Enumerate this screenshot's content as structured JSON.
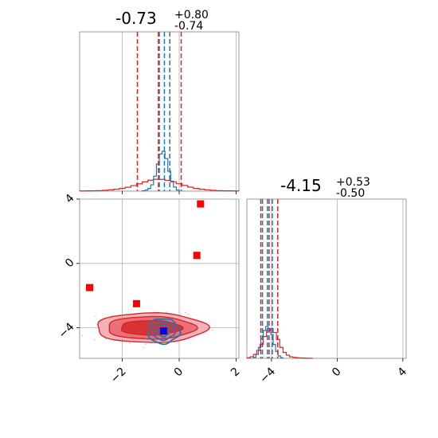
{
  "chart_data": [
    {
      "type": "histogram",
      "panel": "top-left marginal",
      "parameter_index": 0,
      "title": {
        "median": "-0.73",
        "upper": "+0.80",
        "lower": "-0.74"
      },
      "xlim": [
        -3.5,
        2.1
      ],
      "xticks": [
        -2,
        0,
        2
      ],
      "grid": true,
      "series": [
        {
          "color": "#d62728",
          "style": "step",
          "bins": [
            -3.5,
            -3.3,
            -3.1,
            -2.9,
            -2.7,
            -2.5,
            -2.3,
            -2.1,
            -1.9,
            -1.7,
            -1.5,
            -1.3,
            -1.1,
            -0.9,
            -0.7,
            -0.5,
            -0.3,
            -0.1,
            0.1,
            0.3,
            0.5,
            0.7,
            0.9,
            1.1,
            1.3,
            1.5,
            1.7,
            1.9,
            2.1
          ],
          "counts": [
            0.2,
            0.3,
            0.4,
            0.6,
            0.9,
            1.4,
            2.1,
            3.1,
            4.3,
            6.1,
            8.0,
            10.2,
            12.1,
            13.1,
            13.0,
            11.9,
            10.3,
            8.2,
            6.3,
            4.4,
            3.0,
            2.1,
            1.4,
            0.9,
            0.6,
            0.4,
            0.3,
            0.2
          ],
          "quantiles": [
            -1.47,
            -0.73,
            0.07
          ]
        },
        {
          "color": "#1f77b4",
          "style": "step",
          "bins": [
            -1.3,
            -1.2,
            -1.1,
            -1.0,
            -0.9,
            -0.8,
            -0.7,
            -0.6,
            -0.5,
            -0.4,
            -0.3,
            -0.2,
            -0.1,
            0.0
          ],
          "counts": [
            0.3,
            1.2,
            3.0,
            7.0,
            16.5,
            30.0,
            41.0,
            44.0,
            36.0,
            22.0,
            11.0,
            4.5,
            1.2
          ],
          "quantiles": [
            -0.7,
            -0.52,
            -0.33
          ]
        }
      ]
    },
    {
      "type": "histogram",
      "panel": "bottom-right marginal",
      "parameter_index": 1,
      "title": {
        "median": "-4.15",
        "upper": "+0.53",
        "lower": "-0.50"
      },
      "xlim": [
        -5.5,
        4.2
      ],
      "xticks": [
        -4,
        0,
        4
      ],
      "grid": true,
      "series": [
        {
          "color": "#d62728",
          "style": "step",
          "bins": [
            -5.5,
            -5.3,
            -5.1,
            -4.9,
            -4.7,
            -4.5,
            -4.3,
            -4.1,
            -3.9,
            -3.7,
            -3.5,
            -3.3,
            -3.1,
            -2.9,
            -2.7,
            -2.5,
            -2.3,
            -2.1,
            -1.9,
            -1.7,
            -1.5
          ],
          "counts": [
            0.3,
            0.8,
            2.0,
            4.0,
            7.0,
            11.0,
            14.0,
            15.0,
            13.0,
            9.5,
            5.5,
            3.0,
            1.6,
            0.8,
            0.5,
            0.3,
            0.2,
            0.15,
            0.1,
            0.05
          ],
          "quantiles": [
            -4.65,
            -4.15,
            -3.62
          ]
        },
        {
          "color": "#1f77b4",
          "style": "step",
          "bins": [
            -5.1,
            -4.95,
            -4.8,
            -4.65,
            -4.5,
            -4.35,
            -4.2,
            -4.05,
            -3.9,
            -3.75,
            -3.6,
            -3.45,
            -3.3
          ],
          "counts": [
            0.5,
            2.0,
            5.5,
            10.0,
            14.0,
            16.0,
            15.0,
            12.0,
            7.0,
            3.5,
            1.2,
            0.3
          ],
          "quantiles": [
            -4.55,
            -4.25,
            -3.95
          ]
        }
      ]
    },
    {
      "type": "scatter",
      "panel": "bottom-left joint",
      "xlim": [
        -3.5,
        2.1
      ],
      "ylim": [
        -5.9,
        4.0
      ],
      "xticks": [
        -2,
        0,
        2
      ],
      "yticks": [
        -4,
        0,
        4
      ],
      "grid": true,
      "contours": [
        {
          "color": "#d62728",
          "center": [
            -1.0,
            -4.0
          ],
          "levels_radii": [
            [
              1.08,
              0.45
            ],
            [
              1.55,
              0.7
            ],
            [
              1.95,
              0.92
            ]
          ]
        },
        {
          "color": "#1f77b4",
          "center": [
            -0.55,
            -4.2
          ],
          "levels_radii": [
            [
              0.2,
              0.35
            ],
            [
              0.38,
              0.55
            ],
            [
              0.55,
              0.78
            ]
          ]
        }
      ],
      "markers": [
        {
          "color": "#ff0000",
          "shape": "square",
          "x": 0.75,
          "y": 3.7
        },
        {
          "color": "#ff0000",
          "shape": "square",
          "x": 0.62,
          "y": 0.5
        },
        {
          "color": "#ff0000",
          "shape": "square",
          "x": -3.15,
          "y": -1.5
        },
        {
          "color": "#ff0000",
          "shape": "square",
          "x": -1.5,
          "y": -2.5
        },
        {
          "color": "#0000ff",
          "shape": "square",
          "x": -0.55,
          "y": -4.2
        }
      ]
    }
  ]
}
